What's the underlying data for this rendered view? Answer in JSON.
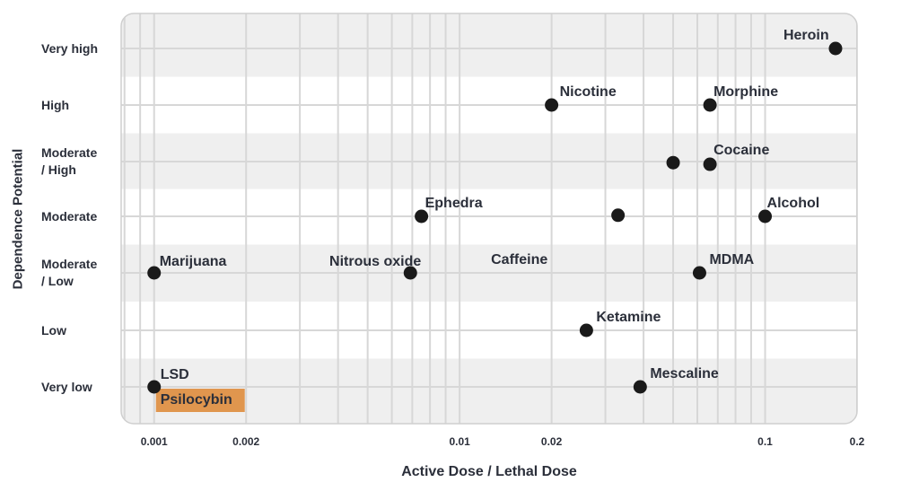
{
  "chart_data": {
    "type": "scatter",
    "title": "",
    "xlabel": "Active Dose / Lethal Dose",
    "ylabel": "Dependence Potential",
    "x_scale": "log",
    "xlim": [
      0.00078,
      0.2
    ],
    "x_ticks": [
      {
        "value": 0.001,
        "label": "0.001"
      },
      {
        "value": 0.002,
        "label": "0.002"
      },
      {
        "value": 0.01,
        "label": "0.01"
      },
      {
        "value": 0.02,
        "label": "0.02"
      },
      {
        "value": 0.1,
        "label": "0.1"
      },
      {
        "value": 0.2,
        "label": "0.2"
      }
    ],
    "y_categories": [
      "Very low",
      "Low",
      "Moderate\n/ Low",
      "Moderate",
      "Moderate\n/ High",
      "High",
      "Very high"
    ],
    "grid": true,
    "points": [
      {
        "name": "Heroin",
        "x": 0.17,
        "y": 6
      },
      {
        "name": "Nicotine",
        "x": 0.02,
        "y": 5
      },
      {
        "name": "Morphine",
        "x": 0.066,
        "y": 5
      },
      {
        "name": "Cocaine",
        "x": 0.066,
        "y": 3.95
      },
      {
        "name": "",
        "x": 0.05,
        "y": 3.98
      },
      {
        "name": "Ephedra",
        "x": 0.0075,
        "y": 3
      },
      {
        "name": "",
        "x": 0.033,
        "y": 3.02
      },
      {
        "name": "Alcohol",
        "x": 0.1,
        "y": 3
      },
      {
        "name": "Marijuana",
        "x": 0.001,
        "y": 2
      },
      {
        "name": "Nitrous oxide",
        "x": 0.0069,
        "y": 2
      },
      {
        "name": "MDMA",
        "x": 0.061,
        "y": 2
      },
      {
        "name": "Ketamine",
        "x": 0.026,
        "y": 1
      },
      {
        "name": "LSD",
        "x": 0.001,
        "y": 0
      },
      {
        "name": "Mescaline",
        "x": 0.039,
        "y": 0
      }
    ],
    "text_annotations": [
      {
        "text": "Caffeine",
        "x": 0.0125,
        "y": 2
      }
    ],
    "highlighted_label": {
      "text": "Psilocybin",
      "x": 0.001,
      "y": 0,
      "color": "#e0964e"
    },
    "colors": {
      "point": "#1a1a1a",
      "band_alt": "#efefef",
      "panel": "#ffffff",
      "gridline": "#d7d7d7",
      "frame": "#cfcfcf"
    }
  }
}
